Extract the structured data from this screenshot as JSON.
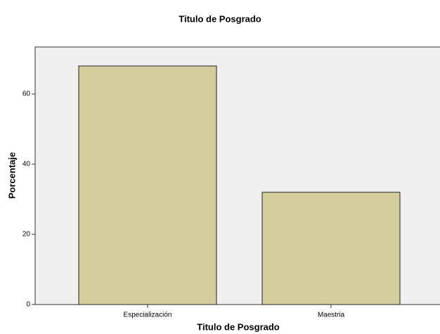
{
  "chart_data": {
    "type": "bar",
    "title": "Titulo de Posgrado",
    "x_label": "Titulo de Posgrado",
    "y_label": "Porcentaje",
    "categories": [
      "Especialización",
      "Maestria"
    ],
    "values": [
      68,
      32
    ],
    "color": "#d3ce9b",
    "ylim": [
      0,
      73.4
    ],
    "yticks": [
      0,
      20,
      40,
      60
    ],
    "grid": false
  }
}
